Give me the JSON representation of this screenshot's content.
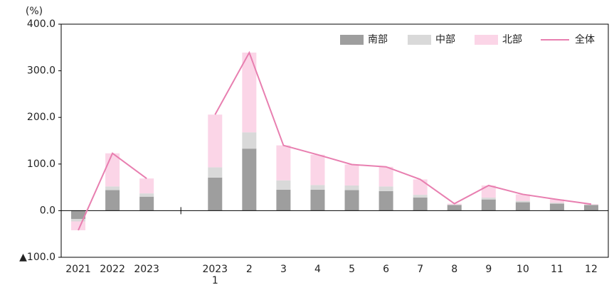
{
  "chart_data": {
    "type": "bar",
    "stacked": true,
    "ylabel": "(%)",
    "categories": [
      "2021",
      "2022",
      "2023",
      null,
      "2023\n1",
      "2",
      "3",
      "4",
      "5",
      "6",
      "7",
      "8",
      "9",
      "10",
      "11",
      "12"
    ],
    "series": [
      {
        "name": "南部",
        "color": "#9e9e9e",
        "values": [
          -18,
          44,
          30,
          null,
          71,
          133,
          45,
          45,
          44,
          42,
          28,
          12,
          24,
          18,
          15,
          12
        ]
      },
      {
        "name": "中部",
        "color": "#d9d9d9",
        "values": [
          -5,
          8,
          7,
          null,
          22,
          35,
          20,
          10,
          10,
          10,
          6,
          1,
          4,
          3,
          2,
          1
        ]
      },
      {
        "name": "北部",
        "color": "#fbd5e7",
        "values": [
          -19,
          71,
          32,
          null,
          113,
          171,
          75,
          65,
          45,
          42,
          33,
          2,
          26,
          14,
          7,
          1
        ]
      },
      {
        "name": "全体",
        "type": "line",
        "color": "#e87fb0",
        "values": [
          -42,
          123,
          69,
          null,
          206,
          339,
          140,
          120,
          99,
          94,
          67,
          15,
          54,
          35,
          24,
          14
        ]
      }
    ],
    "ylim": [
      -100,
      400
    ],
    "yticks": [
      {
        "value": 400,
        "label": "400.0"
      },
      {
        "value": 300,
        "label": "300.0"
      },
      {
        "value": 200,
        "label": "200.0"
      },
      {
        "value": 100,
        "label": "100.0"
      },
      {
        "value": 0,
        "label": "0.0"
      },
      {
        "value": -100,
        "label": "▲100.0"
      }
    ],
    "legend": "upper right"
  }
}
